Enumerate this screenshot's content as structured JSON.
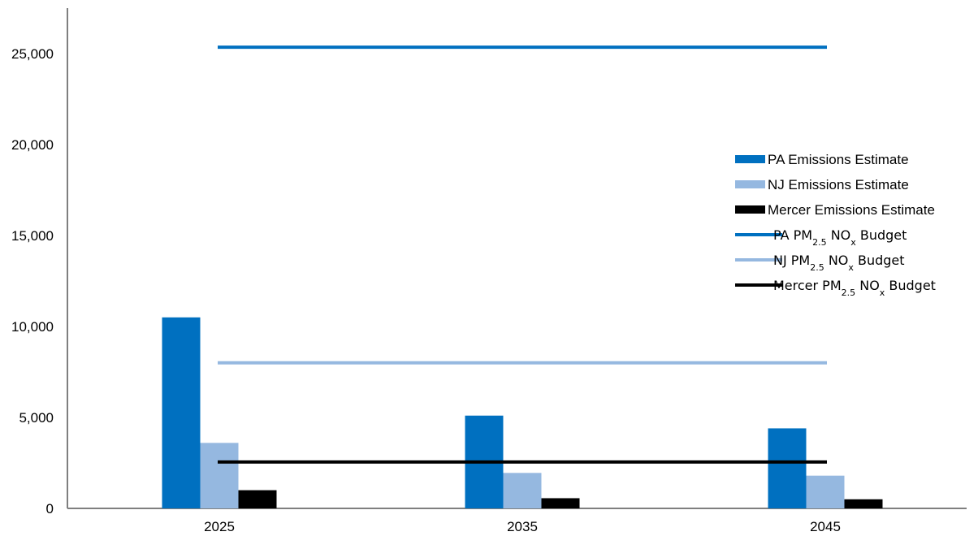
{
  "chart_data": {
    "type": "bar",
    "categories": [
      "2025",
      "2035",
      "2045"
    ],
    "ylim": [
      0,
      27000
    ],
    "yticks": [
      "0",
      "5,000",
      "10,000",
      "15,000",
      "20,000",
      "25,000"
    ],
    "ytick_values": [
      0,
      5000,
      10000,
      15000,
      20000,
      25000
    ],
    "grid": false,
    "legend_position": "right",
    "series": [
      {
        "name": "PA Emissions Estimate",
        "kind": "bar",
        "color": "#0070C0",
        "values": [
          10500,
          5100,
          4400
        ]
      },
      {
        "name": "NJ Emissions Estimate",
        "kind": "bar",
        "color": "#95B8E0",
        "values": [
          3600,
          1950,
          1800
        ]
      },
      {
        "name": "Mercer Emissions Estimate",
        "kind": "bar",
        "color": "#000000",
        "values": [
          1000,
          560,
          500
        ]
      }
    ],
    "budgets": [
      {
        "name": "PA PM2.5 NOx Budget",
        "prefix": "PA PM",
        "sub1": "2.5",
        "mid": " NO",
        "sub2": "x",
        "suffix": " Budget",
        "color": "#0070C0",
        "value": 25350
      },
      {
        "name": "NJ PM2.5 NOx Budget",
        "prefix": "NJ  PM",
        "sub1": "2.5",
        "mid": " NO",
        "sub2": "x",
        "suffix": " Budget",
        "color": "#95B8E0",
        "value": 8000
      },
      {
        "name": "Mercer PM2.5 NOx Budget",
        "prefix": "Mercer PM",
        "sub1": "2.5",
        "mid": " NO",
        "sub2": "x",
        "suffix": " Budget",
        "color": "#000000",
        "value": 2550
      }
    ]
  }
}
